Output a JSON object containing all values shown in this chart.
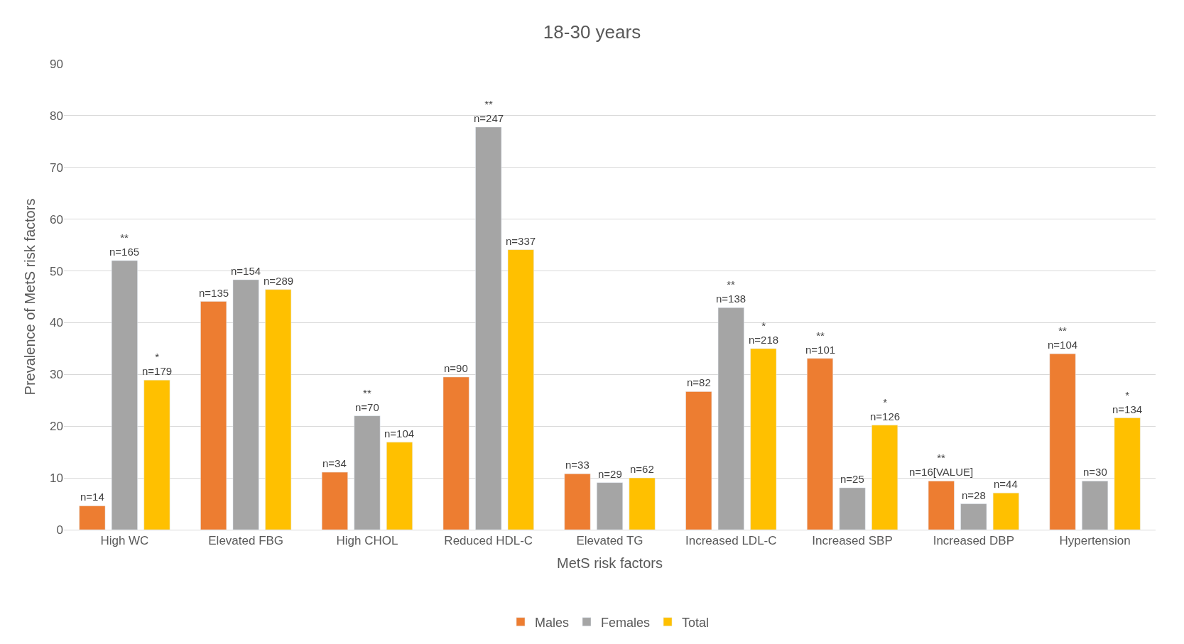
{
  "chart_data": {
    "type": "bar",
    "title": "18-30 years",
    "xlabel": "MetS risk factors",
    "ylabel": "Prevalence of MetS risk factors",
    "categories": [
      "High WC",
      "Elevated FBG",
      "High CHOL",
      "Reduced HDL-C",
      "Elevated TG",
      "Increased LDL-C",
      "Increased SBP",
      "Increased DBP",
      "Hypertension"
    ],
    "series": [
      {
        "name": "Males",
        "color": "#ed7d31",
        "values": [
          4.6,
          44.1,
          11.1,
          29.5,
          10.8,
          26.7,
          33.1,
          9.4,
          34.0
        ]
      },
      {
        "name": "Females",
        "color": "#a5a5a5",
        "values": [
          52.0,
          48.3,
          22.0,
          77.8,
          9.1,
          42.9,
          8.1,
          5.0,
          9.4
        ]
      },
      {
        "name": "Total",
        "color": "#ffc000",
        "values": [
          28.9,
          46.4,
          16.9,
          54.1,
          10.0,
          35.0,
          20.2,
          7.1,
          21.6
        ]
      }
    ],
    "annotations": [
      "n=14",
      "**\nn=165",
      "*\nn=179",
      "n=135",
      "n=154",
      "n=289",
      "n=34",
      "**\nn=70",
      "n=104",
      "n=90",
      "**\nn=247",
      "n=337",
      "n=33",
      "n=29",
      "n=62",
      "n=82",
      "**\nn=138",
      "*\nn=218",
      "**\nn=101",
      "n=25",
      "*\nn=126",
      "**\nn=16[VALUE]",
      "n=28",
      "n=44",
      "**\nn=104",
      "n=30",
      "*\nn=134"
    ],
    "ylim": [
      0,
      90
    ],
    "yticks": [
      0,
      10,
      20,
      30,
      40,
      50,
      60,
      70,
      80,
      90
    ],
    "grid": "y",
    "legend": "bottom"
  }
}
